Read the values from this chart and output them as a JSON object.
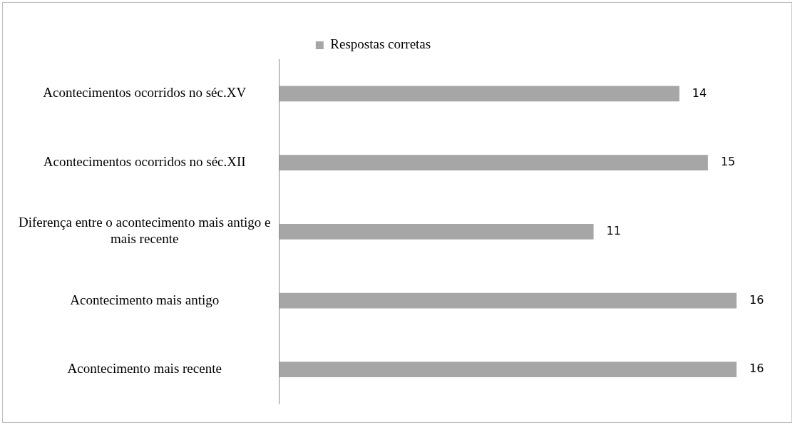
{
  "chart_data": {
    "type": "bar",
    "orientation": "horizontal",
    "categories": [
      "Acontecimentos ocorridos no séc.XV",
      "Acontecimentos ocorridos no séc.XII",
      "Diferença entre o acontecimento mais antigo e mais recente",
      "Acontecimento mais antigo",
      "Acontecimento mais recente"
    ],
    "series": [
      {
        "name": "Respostas corretas",
        "color": "#a6a6a6",
        "values": [
          14,
          15,
          11,
          16,
          16
        ]
      }
    ],
    "data_labels": true,
    "legend": "top",
    "tick_labels": "y"
  }
}
